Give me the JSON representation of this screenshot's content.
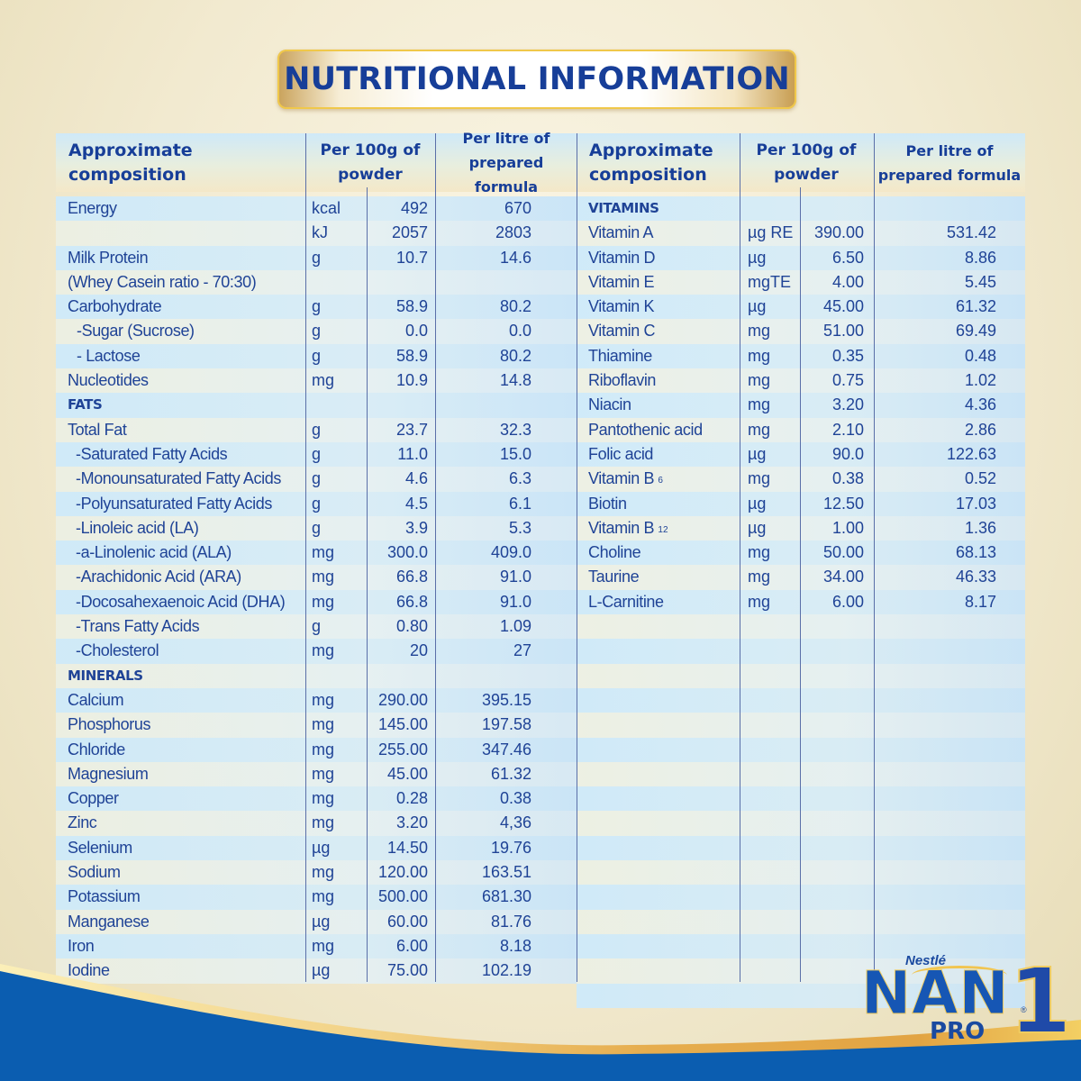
{
  "title": "NUTRITIONAL INFORMATION",
  "headers": {
    "composition": [
      "Approximate",
      "composition"
    ],
    "per100g": [
      "Per 100g of",
      "powder"
    ],
    "perLitre": [
      "Per litre of",
      "prepared formula"
    ]
  },
  "left_table": [
    {
      "name": "Energy",
      "unit": "kcal",
      "per100g": "492",
      "perLitre": "670",
      "type": "item"
    },
    {
      "name": "",
      "unit": "kJ",
      "per100g": "2057",
      "perLitre": "2803",
      "type": "item"
    },
    {
      "name": "Milk Protein",
      "unit": "g",
      "per100g": "10.7",
      "perLitre": "14.6",
      "type": "item"
    },
    {
      "name": "(Whey Casein ratio - 70:30)",
      "unit": "",
      "per100g": "",
      "perLitre": "",
      "type": "item"
    },
    {
      "name": "Carbohydrate",
      "unit": "g",
      "per100g": "58.9",
      "perLitre": "80.2",
      "type": "item"
    },
    {
      "name": "-Sugar (Sucrose)",
      "unit": "g",
      "per100g": "0.0",
      "perLitre": "0.0",
      "type": "sub"
    },
    {
      "name": "- Lactose",
      "unit": "g",
      "per100g": "58.9",
      "perLitre": "80.2",
      "type": "sub"
    },
    {
      "name": "Nucleotides",
      "unit": "mg",
      "per100g": "10.9",
      "perLitre": "14.8",
      "type": "item"
    },
    {
      "name": "FATS",
      "unit": "",
      "per100g": "",
      "perLitre": "",
      "type": "section"
    },
    {
      "name": "Total Fat",
      "unit": "g",
      "per100g": "23.7",
      "perLitre": "32.3",
      "type": "item"
    },
    {
      "name": "-Saturated Fatty Acids",
      "unit": "g",
      "per100g": "11.0",
      "perLitre": "15.0",
      "type": "sub2"
    },
    {
      "name": "-Monounsaturated Fatty Acids",
      "unit": "g",
      "per100g": "4.6",
      "perLitre": "6.3",
      "type": "sub2"
    },
    {
      "name": "-Polyunsaturated Fatty Acids",
      "unit": "g",
      "per100g": "4.5",
      "perLitre": "6.1",
      "type": "sub2"
    },
    {
      "name": "-Linoleic acid (LA)",
      "unit": "g",
      "per100g": "3.9",
      "perLitre": "5.3",
      "type": "sub2"
    },
    {
      "name": "-a-Linolenic acid (ALA)",
      "unit": "mg",
      "per100g": "300.0",
      "perLitre": "409.0",
      "type": "sub2"
    },
    {
      "name": "-Arachidonic Acid (ARA)",
      "unit": "mg",
      "per100g": "66.8",
      "perLitre": "91.0",
      "type": "sub2"
    },
    {
      "name": "-Docosahexaenoic Acid (DHA)",
      "unit": "mg",
      "per100g": "66.8",
      "perLitre": "91.0",
      "type": "sub2"
    },
    {
      "name": "-Trans Fatty Acids",
      "unit": "g",
      "per100g": "0.80",
      "perLitre": "1.09",
      "type": "sub2"
    },
    {
      "name": "-Cholesterol",
      "unit": "mg",
      "per100g": "20",
      "perLitre": "27",
      "type": "sub2"
    },
    {
      "name": "MINERALS",
      "unit": "",
      "per100g": "",
      "perLitre": "",
      "type": "section"
    },
    {
      "name": "Calcium",
      "unit": "mg",
      "per100g": "290.00",
      "perLitre": "395.15",
      "type": "item"
    },
    {
      "name": "Phosphorus",
      "unit": "mg",
      "per100g": "145.00",
      "perLitre": "197.58",
      "type": "item"
    },
    {
      "name": "Chloride",
      "unit": "mg",
      "per100g": "255.00",
      "perLitre": "347.46",
      "type": "item"
    },
    {
      "name": "Magnesium",
      "unit": "mg",
      "per100g": "45.00",
      "perLitre": "61.32",
      "type": "item"
    },
    {
      "name": "Copper",
      "unit": "mg",
      "per100g": "0.28",
      "perLitre": "0.38",
      "type": "item"
    },
    {
      "name": "Zinc",
      "unit": "mg",
      "per100g": "3.20",
      "perLitre": "4,36",
      "type": "item"
    },
    {
      "name": "Selenium",
      "unit": "µg",
      "per100g": "14.50",
      "perLitre": "19.76",
      "type": "item"
    },
    {
      "name": "Sodium",
      "unit": "mg",
      "per100g": "120.00",
      "perLitre": "163.51",
      "type": "item"
    },
    {
      "name": "Potassium",
      "unit": "mg",
      "per100g": "500.00",
      "perLitre": "681.30",
      "type": "item"
    },
    {
      "name": "Manganese",
      "unit": "µg",
      "per100g": "60.00",
      "perLitre": "81.76",
      "type": "item"
    },
    {
      "name": "Iron",
      "unit": "mg",
      "per100g": "6.00",
      "perLitre": "8.18",
      "type": "item"
    },
    {
      "name": "Iodine",
      "unit": "µg",
      "per100g": "75.00",
      "perLitre": "102.19",
      "type": "item"
    }
  ],
  "right_table": [
    {
      "name": "VITAMINS",
      "unit": "",
      "per100g": "",
      "perLitre": "",
      "type": "section"
    },
    {
      "name": "Vitamin A",
      "unit": "µg RE",
      "per100g": "390.00",
      "perLitre": "531.42",
      "type": "item"
    },
    {
      "name": "Vitamin D",
      "unit": "µg",
      "per100g": "6.50",
      "perLitre": "8.86",
      "type": "item"
    },
    {
      "name": "Vitamin E",
      "unit": "mgTE",
      "per100g": "4.00",
      "perLitre": "5.45",
      "type": "item"
    },
    {
      "name": "Vitamin K",
      "unit": "µg",
      "per100g": "45.00",
      "perLitre": "61.32",
      "type": "item"
    },
    {
      "name": "Vitamin C",
      "unit": "mg",
      "per100g": "51.00",
      "perLitre": "69.49",
      "type": "item"
    },
    {
      "name": "Thiamine",
      "unit": "mg",
      "per100g": "0.35",
      "perLitre": "0.48",
      "type": "item"
    },
    {
      "name": "Riboflavin",
      "unit": "mg",
      "per100g": "0.75",
      "perLitre": "1.02",
      "type": "item"
    },
    {
      "name": "Niacin",
      "unit": "mg",
      "per100g": "3.20",
      "perLitre": "4.36",
      "type": "item"
    },
    {
      "name": "Pantothenic acid",
      "unit": "mg",
      "per100g": "2.10",
      "perLitre": "2.86",
      "type": "item"
    },
    {
      "name": "Folic acid",
      "unit": "µg",
      "per100g": "90.0",
      "perLitre": "122.63",
      "type": "item"
    },
    {
      "name": "Vitamin B",
      "sub": "6",
      "unit": "mg",
      "per100g": "0.38",
      "perLitre": "0.52",
      "type": "item"
    },
    {
      "name": "Biotin",
      "unit": "µg",
      "per100g": "12.50",
      "perLitre": "17.03",
      "type": "item"
    },
    {
      "name": "Vitamin B",
      "sub": "12",
      "unit": "µg",
      "per100g": "1.00",
      "perLitre": "1.36",
      "type": "item"
    },
    {
      "name": "Choline",
      "unit": "mg",
      "per100g": "50.00",
      "perLitre": "68.13",
      "type": "item"
    },
    {
      "name": "Taurine",
      "unit": "mg",
      "per100g": "34.00",
      "perLitre": "46.33",
      "type": "item"
    },
    {
      "name": "L-Carnitine",
      "unit": "mg",
      "per100g": "6.00",
      "perLitre": "8.17",
      "type": "item"
    }
  ],
  "right_empty_rows": 16,
  "brand": {
    "maker": "Nestlé",
    "product": "NAN",
    "registered": "®",
    "line": "PRO",
    "stage": "1"
  },
  "colors": {
    "text_blue": "#1f4396",
    "title_blue": "#173e98",
    "bottom_blue": "#0b5db0",
    "gold": "#f0c84a",
    "row_blue": "#cfeaf9"
  }
}
